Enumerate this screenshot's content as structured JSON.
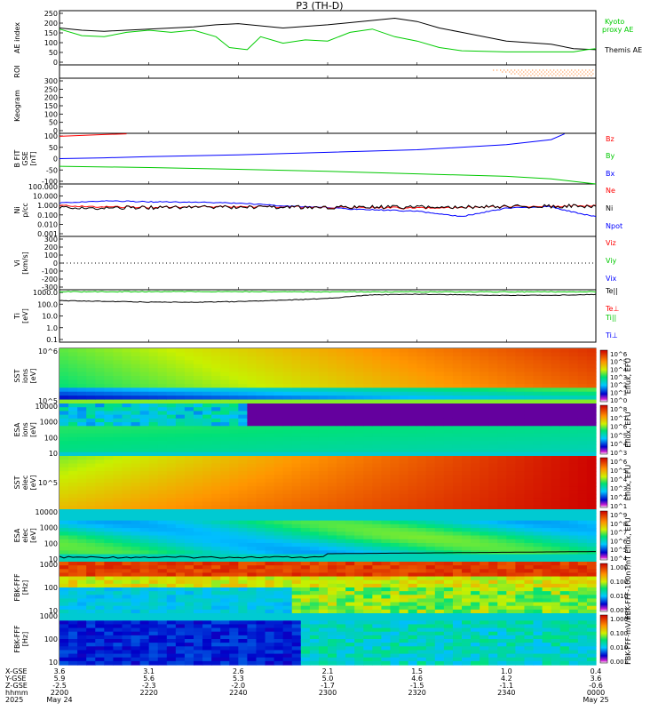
{
  "title": "P3 (TH-D)",
  "colors": {
    "black": "#000000",
    "red": "#ff0000",
    "green": "#00c800",
    "blue": "#0000ff",
    "kyoto": "#00cc00",
    "roi": "#ff6a00"
  },
  "panels": [
    {
      "key": "ae",
      "ylabel": [
        "AE index"
      ],
      "ticks": [
        "250",
        "200",
        "150",
        "100",
        "50",
        "0"
      ],
      "ylim": [
        0,
        250
      ]
    },
    {
      "key": "roi",
      "ylabel": [
        "ROI"
      ],
      "ticks": []
    },
    {
      "key": "keogram",
      "ylabel": [
        "Keogram"
      ],
      "ticks": [
        "300",
        "250",
        "200",
        "150",
        "100",
        "50",
        "0"
      ]
    },
    {
      "key": "bfield",
      "ylabel": [
        "B FIT",
        "GSE",
        "[nT]"
      ],
      "ticks": [
        "100",
        "50",
        "0",
        "-50",
        "-100"
      ],
      "ylim": [
        -100,
        100
      ]
    },
    {
      "key": "density",
      "ylabel": [
        "Ni",
        "p/cc"
      ],
      "ticks": [
        "100.000",
        "10.000",
        "1.000",
        "0.100",
        "0.010",
        "0.001"
      ]
    },
    {
      "key": "velocity",
      "ylabel": [
        "Vi",
        "[km/s]"
      ],
      "ticks": [
        "300",
        "200",
        "100",
        "0",
        "-100",
        "-200",
        "-300"
      ],
      "ylim": [
        -300,
        300
      ]
    },
    {
      "key": "temperature",
      "ylabel": [
        "Ti",
        "[eV]"
      ],
      "ticks": [
        "1000.0",
        "100.0",
        "10.0",
        "1.0",
        "0.1"
      ]
    },
    {
      "key": "sst_ion",
      "ylabel": [
        "SST",
        "ions",
        "[eV]"
      ],
      "ticks": [
        "10^6",
        "10^5"
      ]
    },
    {
      "key": "esa_ion",
      "ylabel": [
        "ESA",
        "ions",
        "[eV]"
      ],
      "ticks": [
        "10000",
        "1000",
        "100",
        "10"
      ]
    },
    {
      "key": "sst_elec",
      "ylabel": [
        "SST",
        "elec",
        "[eV]"
      ],
      "ticks": [
        "10^5"
      ]
    },
    {
      "key": "esa_elec",
      "ylabel": [
        "ESA",
        "elec",
        "[eV]"
      ],
      "ticks": [
        "10000",
        "1000",
        "100",
        "10"
      ]
    },
    {
      "key": "fbk_fff_scm",
      "ylabel": [
        "FBK-FFF",
        "[Hz]"
      ],
      "ticks": [
        "1000",
        "100",
        "10"
      ]
    },
    {
      "key": "fbk_fff_efi",
      "ylabel": [
        "FBK-FFF",
        "[Hz]"
      ],
      "ticks": [
        "1000",
        "100",
        "10"
      ]
    }
  ],
  "legends": {
    "ae": [
      "Kyoto",
      "proxy AE",
      "Themis AE"
    ],
    "bfield": [
      "Bz",
      "By",
      "Bx"
    ],
    "density": [
      "Ne",
      "Ni",
      "Npot"
    ],
    "velocity": [
      "Viz",
      "Viy",
      "Vix"
    ],
    "temperature": [
      "Te||",
      "Te⊥",
      "Ti||",
      "Ti⊥"
    ]
  },
  "colorbars": [
    {
      "panel": "sst_ion",
      "label": "Eflux, EFU",
      "ticks": [
        "10^6",
        "10^5",
        "10^4",
        "10^3",
        "10^2",
        "10^1",
        "10^0"
      ]
    },
    {
      "panel": "esa_ion",
      "label": "Eflux, EFU",
      "ticks": [
        "10^8",
        "10^7",
        "10^6",
        "10^5",
        "10^4",
        "10^3"
      ]
    },
    {
      "panel": "sst_elec",
      "label": "Eflux, EFU",
      "ticks": [
        "10^6",
        "10^5",
        "10^4",
        "10^3",
        "10^2",
        "10^1"
      ]
    },
    {
      "panel": "esa_elec",
      "label": "Eflux, EFU",
      "ticks": [
        "10^9",
        "10^8",
        "10^7",
        "10^6",
        "10^5",
        "10^4"
      ]
    },
    {
      "panel": "fbk_fff_scm",
      "label": "FBK-FFF-100nT/nT",
      "ticks": [
        "1.000",
        "0.100",
        "0.010",
        "0.001"
      ]
    },
    {
      "panel": "fbk_fff_efi",
      "label": "FBK-FFF-mV/m",
      "ticks": [
        "1.000",
        "0.100",
        "0.010",
        "0.001"
      ]
    }
  ],
  "x_axis": {
    "row_labels": [
      "X-GSE",
      "Y-GSE",
      "Z-GSE",
      "hhmm",
      "2025"
    ],
    "columns": [
      {
        "vals": [
          "3.6",
          "5.9",
          "-2.5",
          "2200",
          "May 24"
        ]
      },
      {
        "vals": [
          "3.1",
          "5.6",
          "-2.3",
          "2220",
          ""
        ]
      },
      {
        "vals": [
          "2.6",
          "5.3",
          "-2.0",
          "2240",
          ""
        ]
      },
      {
        "vals": [
          "2.1",
          "5.0",
          "-1.7",
          "2300",
          ""
        ]
      },
      {
        "vals": [
          "1.5",
          "4.6",
          "-1.5",
          "2320",
          ""
        ]
      },
      {
        "vals": [
          "1.0",
          "4.2",
          "-1.1",
          "2340",
          ""
        ]
      },
      {
        "vals": [
          "0.4",
          "3.6",
          "-0.6",
          "0000",
          "May 25"
        ]
      }
    ]
  },
  "chart_data": {
    "type": "line",
    "title": "P3 (TH-D)",
    "time_range": [
      "2025-05-24 22:00",
      "2025-05-25 00:00"
    ],
    "x_ticks": [
      "2200",
      "2220",
      "2240",
      "2300",
      "2320",
      "2340",
      "0000"
    ],
    "x_minutes": [
      0,
      20,
      40,
      60,
      80,
      100,
      120
    ],
    "ae_series": [
      {
        "name": "Themis AE",
        "t": [
          0,
          5,
          10,
          20,
          30,
          35,
          40,
          50,
          60,
          70,
          75,
          80,
          85,
          90,
          100,
          110,
          115,
          120
        ],
        "values": [
          170,
          160,
          155,
          165,
          175,
          185,
          190,
          170,
          185,
          205,
          215,
          200,
          170,
          150,
          110,
          95,
          75,
          70
        ]
      },
      {
        "name": "Kyoto proxy AE",
        "t": [
          0,
          5,
          10,
          15,
          20,
          25,
          30,
          35,
          38,
          42,
          45,
          50,
          55,
          60,
          65,
          70,
          75,
          80,
          85,
          90,
          100,
          110,
          115,
          118,
          120
        ],
        "values": [
          165,
          135,
          130,
          150,
          160,
          150,
          160,
          130,
          80,
          70,
          130,
          100,
          115,
          110,
          150,
          165,
          130,
          110,
          80,
          65,
          60,
          60,
          60,
          70,
          75
        ]
      }
    ],
    "bfield_series": [
      {
        "name": "Bz",
        "t": [
          0,
          10,
          15
        ],
        "values": [
          88,
          95,
          98
        ]
      },
      {
        "name": "By",
        "t": [
          0,
          10,
          20,
          40,
          60,
          80,
          100,
          110,
          113
        ],
        "values": [
          0,
          3,
          8,
          15,
          25,
          35,
          55,
          75,
          98
        ]
      },
      {
        "name": "Bx",
        "t": [
          0,
          20,
          40,
          60,
          80,
          100,
          110,
          120
        ],
        "values": [
          -30,
          -35,
          -42,
          -50,
          -60,
          -70,
          -80,
          -100
        ]
      }
    ],
    "density_series": [
      {
        "name": "Npot",
        "t": [
          0,
          10,
          20,
          30,
          40,
          50,
          60,
          65,
          70,
          80,
          90,
          100,
          105,
          110,
          115,
          120
        ],
        "values": [
          1.5,
          2.5,
          2.0,
          1.8,
          1.5,
          0.8,
          0.6,
          0.4,
          0.35,
          0.25,
          0.08,
          0.5,
          0.6,
          0.7,
          0.2,
          0.08
        ]
      },
      {
        "name": "Ni",
        "t": [
          0,
          30,
          60,
          90,
          120
        ],
        "values": [
          0.5,
          0.6,
          0.6,
          0.65,
          0.8
        ]
      },
      {
        "name": "Ne",
        "t": [
          0,
          20,
          40,
          60,
          80,
          100,
          120
        ],
        "values": [
          0.8,
          0.6,
          0.7,
          0.6,
          0.5,
          0.7,
          0.9
        ]
      }
    ],
    "temperature_series": [
      {
        "name": "Te||",
        "t": [
          0,
          30,
          60,
          90,
          120
        ],
        "values": [
          4000,
          4200,
          4000,
          3900,
          4000
        ]
      },
      {
        "name": "Ti||",
        "t": [
          0,
          10,
          20,
          30,
          40,
          50,
          60,
          70,
          80,
          90,
          100,
          110,
          120
        ],
        "values": [
          550,
          470,
          400,
          380,
          450,
          600,
          900,
          2000,
          2300,
          2000,
          1800,
          1800,
          2200
        ]
      }
    ]
  }
}
